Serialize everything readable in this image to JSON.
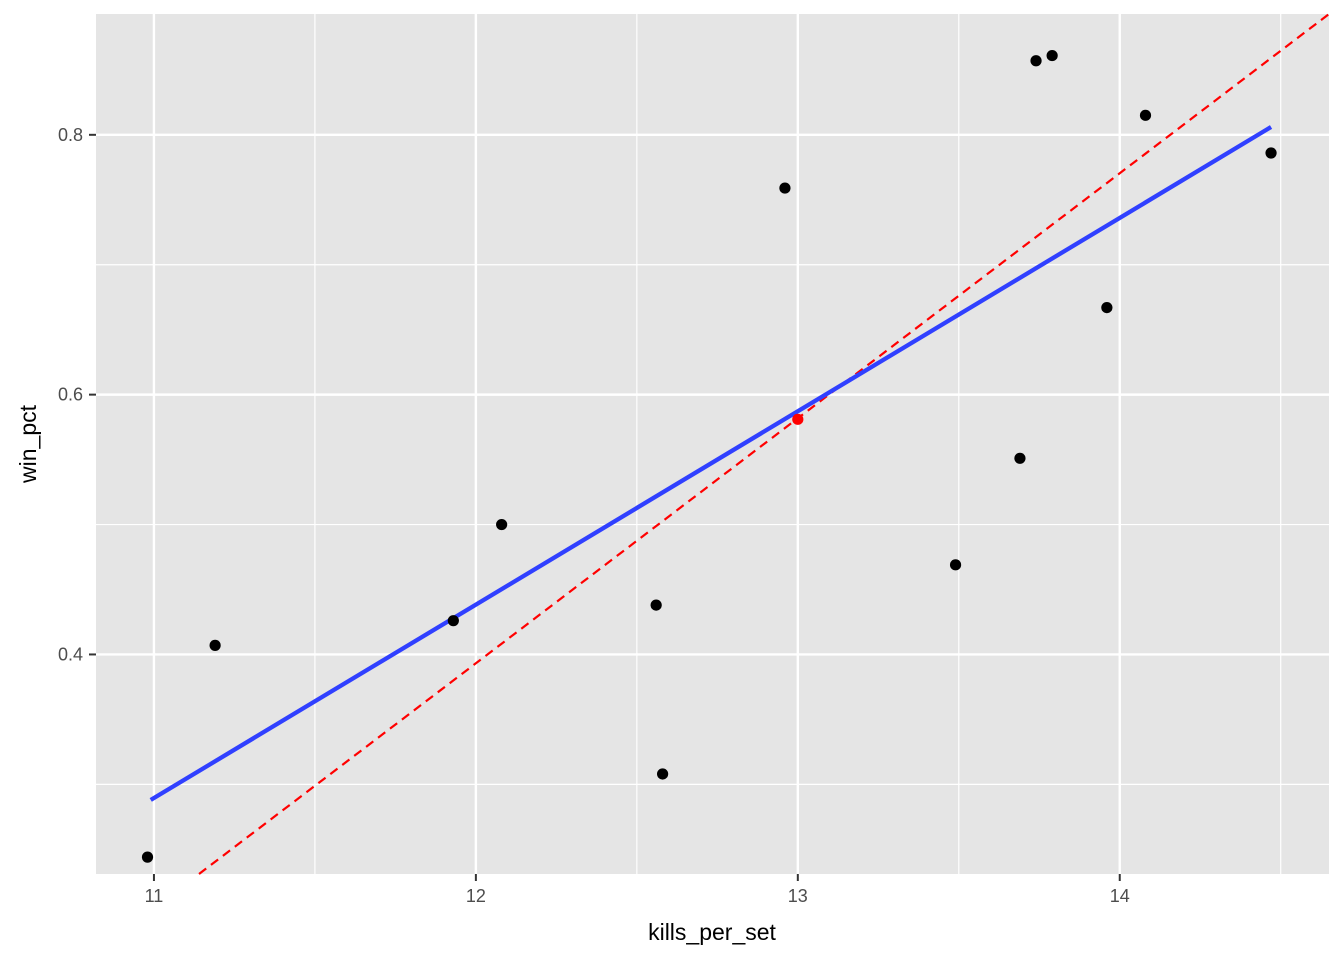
{
  "chart_data": {
    "type": "scatter",
    "xlabel": "kills_per_set",
    "ylabel": "win_pct",
    "xlim": [
      10.82,
      14.65
    ],
    "ylim": [
      0.231,
      0.893
    ],
    "x_ticks": [
      11,
      12,
      13,
      14
    ],
    "x_tick_labels": [
      "11",
      "12",
      "13",
      "14"
    ],
    "x_minor_ticks": [
      11.5,
      12.5,
      13.5,
      14.5
    ],
    "y_ticks": [
      0.4,
      0.6,
      0.8
    ],
    "y_tick_labels": [
      "0.4",
      "0.6",
      "0.8"
    ],
    "y_minor_ticks": [
      0.3,
      0.5,
      0.7
    ],
    "grid": true,
    "points": [
      {
        "x": 10.98,
        "y": 0.244
      },
      {
        "x": 11.19,
        "y": 0.407
      },
      {
        "x": 11.93,
        "y": 0.426
      },
      {
        "x": 12.08,
        "y": 0.5
      },
      {
        "x": 12.56,
        "y": 0.438
      },
      {
        "x": 12.58,
        "y": 0.308
      },
      {
        "x": 12.96,
        "y": 0.759
      },
      {
        "x": 13.49,
        "y": 0.469
      },
      {
        "x": 13.69,
        "y": 0.551
      },
      {
        "x": 13.74,
        "y": 0.857
      },
      {
        "x": 13.79,
        "y": 0.861
      },
      {
        "x": 13.96,
        "y": 0.667
      },
      {
        "x": 14.08,
        "y": 0.815
      },
      {
        "x": 14.47,
        "y": 0.786
      }
    ],
    "highlight_point": {
      "x": 13.0,
      "y": 0.581
    },
    "fit_line": {
      "x": [
        10.99,
        14.47
      ],
      "y": [
        0.288,
        0.806
      ]
    },
    "reference_line": {
      "x": [
        11.14,
        14.65
      ],
      "y": [
        0.231,
        0.893
      ]
    },
    "colors": {
      "panel": "#e5e5e5",
      "grid": "#ffffff",
      "point": "#000000",
      "highlight_point": "#ff0000",
      "fit_line": "#3040ff",
      "reference_line": "#ff0000"
    }
  }
}
